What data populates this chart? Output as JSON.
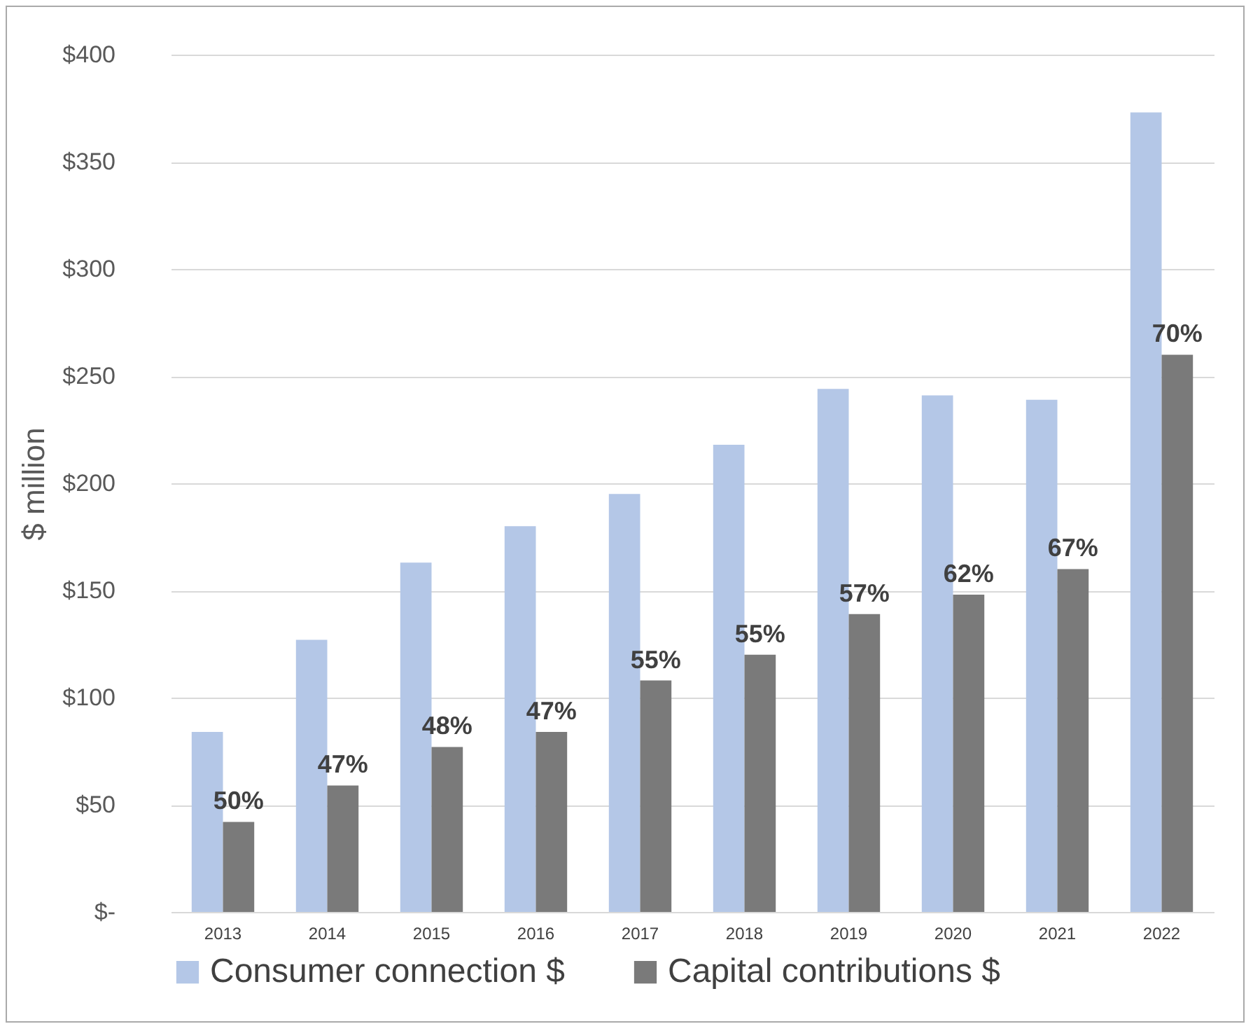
{
  "chart_data": {
    "type": "bar",
    "ylabel": "$ million",
    "categories": [
      "2013",
      "2014",
      "2015",
      "2016",
      "2017",
      "2018",
      "2019",
      "2020",
      "2021",
      "2022"
    ],
    "series": [
      {
        "name": "Consumer connection $",
        "color": "#b4c7e7",
        "values": [
          84,
          127,
          163,
          180,
          195,
          218,
          244,
          241,
          239,
          373
        ]
      },
      {
        "name": "Capital contributions $",
        "color": "#7a7a7a",
        "values": [
          42,
          59,
          77,
          84,
          108,
          120,
          139,
          148,
          160,
          260
        ]
      }
    ],
    "annotations": [
      {
        "text": "50%",
        "x": "2013",
        "y": 42
      },
      {
        "text": "47%",
        "x": "2014",
        "y": 59
      },
      {
        "text": "48%",
        "x": "2015",
        "y": 77
      },
      {
        "text": "47%",
        "x": "2016",
        "y": 84
      },
      {
        "text": "55%",
        "x": "2017",
        "y": 108
      },
      {
        "text": "55%",
        "x": "2018",
        "y": 120
      },
      {
        "text": "57%",
        "x": "2019",
        "y": 139
      },
      {
        "text": "62%",
        "x": "2020",
        "y": 148
      },
      {
        "text": "67%",
        "x": "2021",
        "y": 160
      },
      {
        "text": "70%",
        "x": "2022",
        "y": 260
      }
    ],
    "ylim": [
      0,
      400
    ],
    "yticks": [
      {
        "value": 0,
        "label": "$-"
      },
      {
        "value": 50,
        "label": "$50"
      },
      {
        "value": 100,
        "label": "$100"
      },
      {
        "value": 150,
        "label": "$150"
      },
      {
        "value": 200,
        "label": "$200"
      },
      {
        "value": 250,
        "label": "$250"
      },
      {
        "value": 300,
        "label": "$300"
      },
      {
        "value": 350,
        "label": "$350"
      },
      {
        "value": 400,
        "label": "$400"
      }
    ],
    "grid": "y",
    "legend": "bottom"
  }
}
